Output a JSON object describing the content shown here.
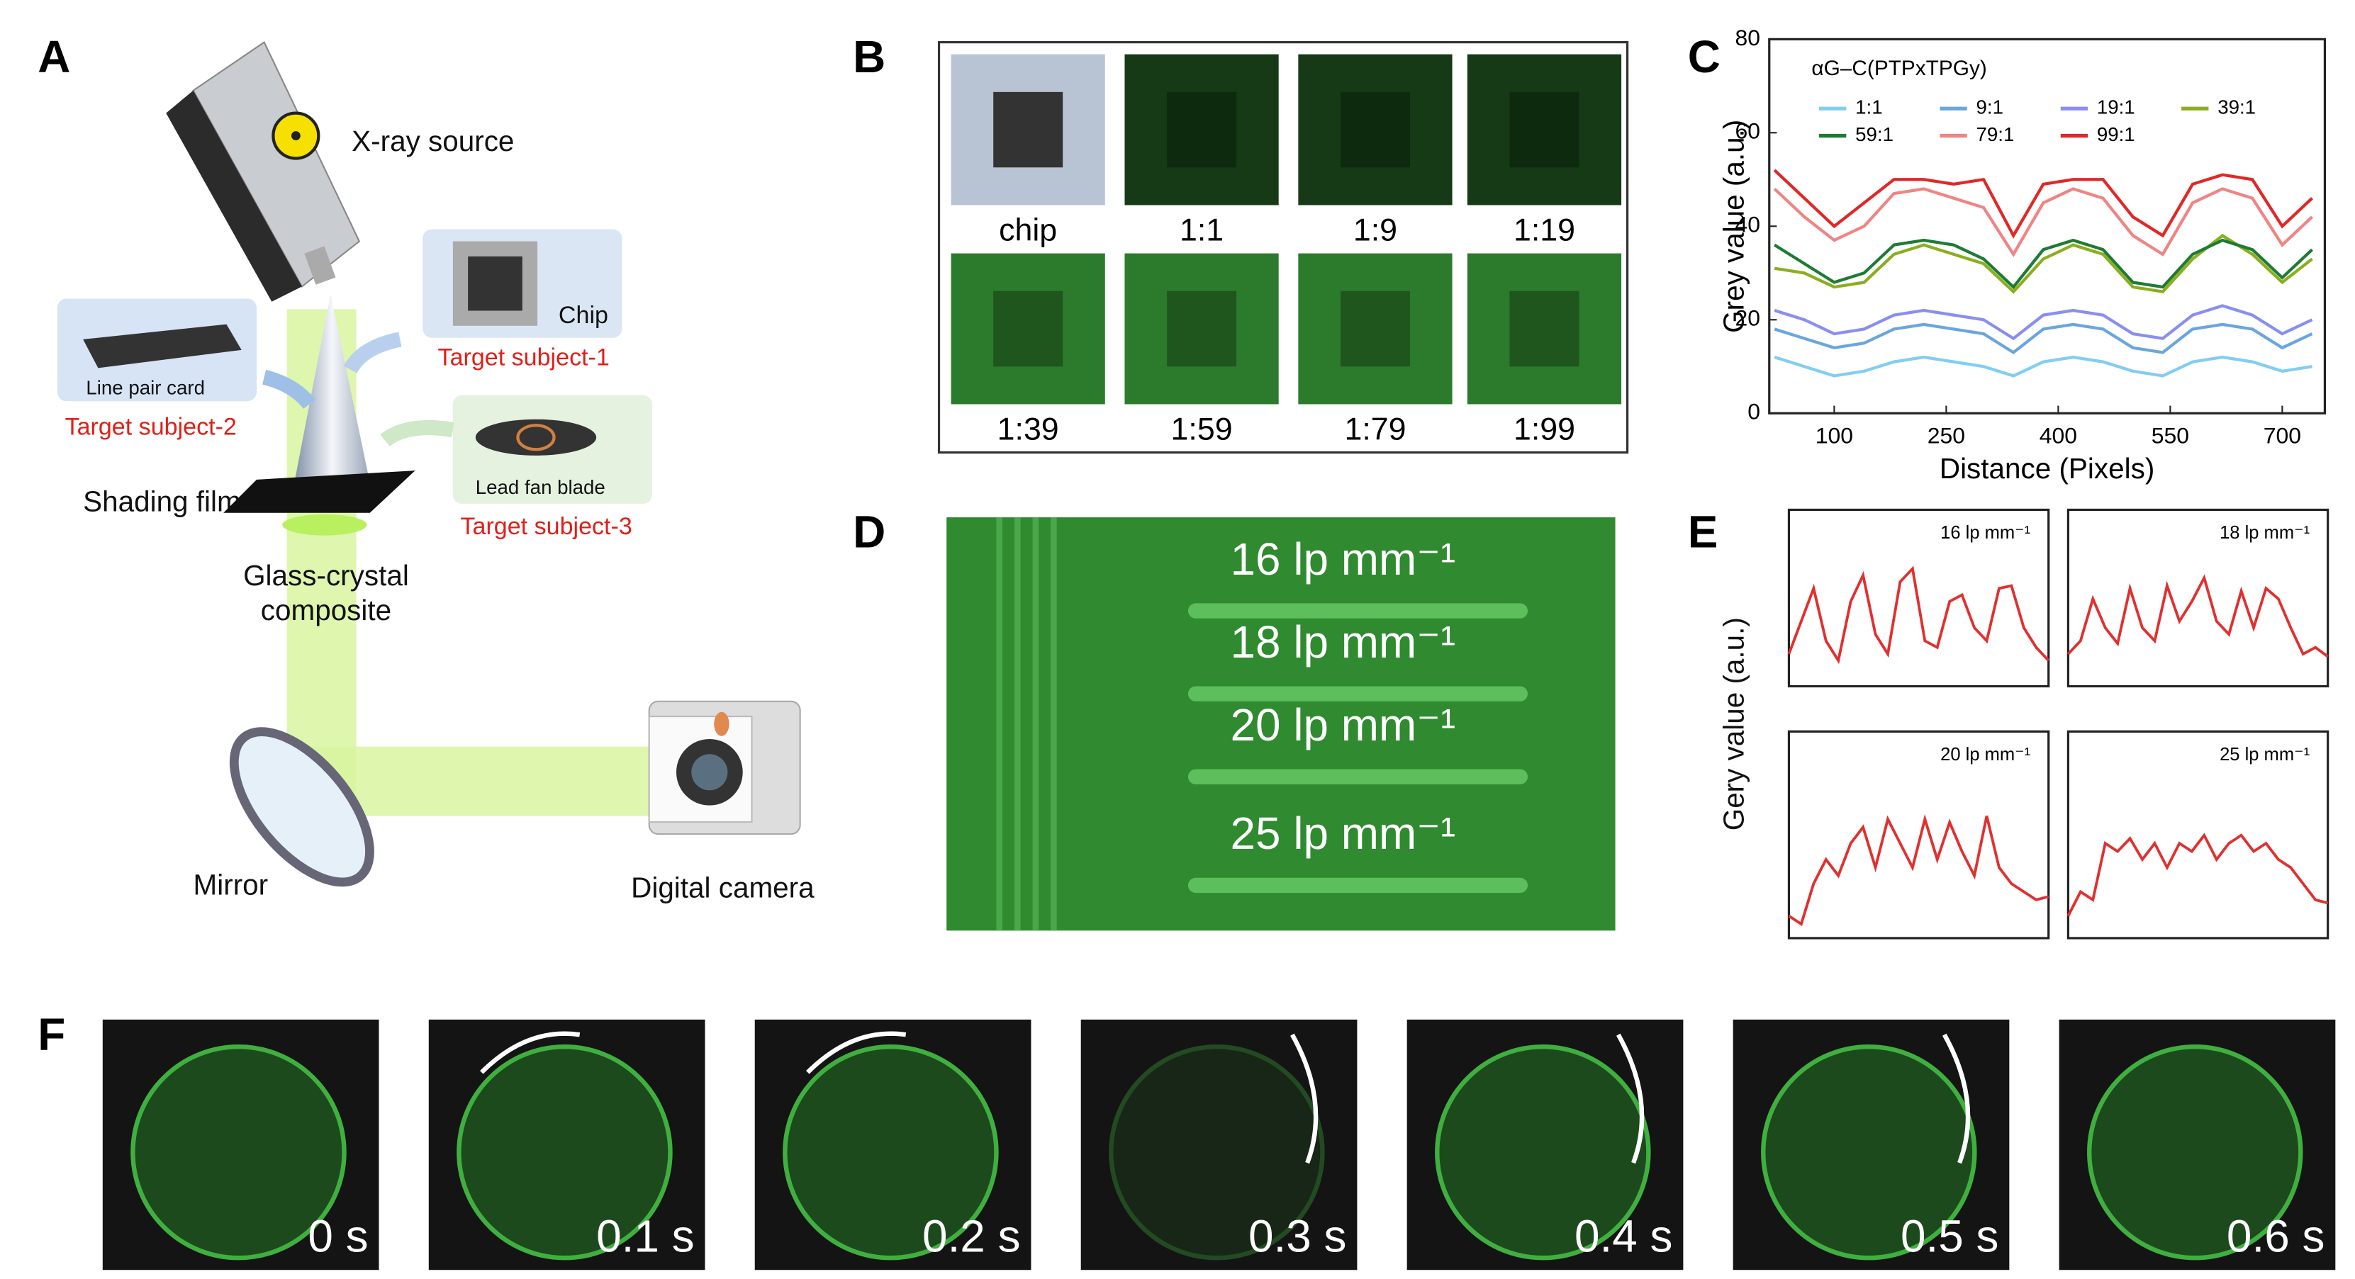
{
  "panels": {
    "A": {
      "letter": "A",
      "labels": {
        "source": "X-ray source",
        "chip": "Chip",
        "subject1": "Target subject-1",
        "card": "Line pair card",
        "subject2": "Target subject-2",
        "blade": "Lead fan blade",
        "subject3": "Target subject-3",
        "film": "Shading film",
        "composite1": "Glass-crystal",
        "composite2": "composite",
        "mirror": "Mirror",
        "camera": "Digital camera"
      }
    },
    "B": {
      "letter": "B",
      "tiles": [
        "chip",
        "1:1",
        "1:9",
        "1:19",
        "1:39",
        "1:59",
        "1:79",
        "1:99"
      ]
    },
    "C": {
      "letter": "C"
    },
    "D": {
      "letter": "D",
      "labels": [
        "16 lp mm⁻¹",
        "18 lp mm⁻¹",
        "20 lp mm⁻¹",
        "25 lp mm⁻¹"
      ]
    },
    "E": {
      "letter": "E",
      "ylabel": "Gery value (a.u.)"
    },
    "F": {
      "letter": "F",
      "times": [
        "0 s",
        "0.1 s",
        "0.2 s",
        "0.3 s",
        "0.4 s",
        "0.5 s",
        "0.6 s"
      ]
    }
  },
  "chart_data": [
    {
      "type": "line",
      "xlabel": "Distance (Pixels)",
      "ylabel": "Grey value (a.u.)",
      "legend_title": "αG–C(PTPxTPGy)",
      "x": [
        20,
        60,
        100,
        140,
        180,
        220,
        260,
        300,
        340,
        380,
        420,
        460,
        500,
        540,
        580,
        620,
        660,
        700,
        740
      ],
      "xlim": [
        13,
        757
      ],
      "ylim": [
        0,
        80
      ],
      "xticks": [
        100,
        250,
        400,
        550,
        700
      ],
      "yticks": [
        0,
        20,
        40,
        60,
        80
      ],
      "series": [
        {
          "name": "1:1",
          "color": "#82cdf2",
          "values": [
            12,
            10,
            8,
            9,
            11,
            12,
            11,
            10,
            8,
            11,
            12,
            11,
            9,
            8,
            11,
            12,
            11,
            9,
            10
          ]
        },
        {
          "name": "9:1",
          "color": "#6aa6de",
          "values": [
            18,
            16,
            14,
            15,
            18,
            19,
            18,
            17,
            13,
            18,
            19,
            18,
            14,
            13,
            18,
            19,
            18,
            14,
            17
          ]
        },
        {
          "name": "19:1",
          "color": "#8a8ef0",
          "values": [
            22,
            20,
            17,
            18,
            21,
            22,
            21,
            20,
            16,
            21,
            22,
            21,
            17,
            16,
            21,
            23,
            21,
            17,
            20
          ]
        },
        {
          "name": "39:1",
          "color": "#8aae1e",
          "values": [
            31,
            30,
            27,
            28,
            34,
            36,
            34,
            32,
            26,
            33,
            36,
            34,
            27,
            26,
            33,
            38,
            34,
            28,
            33
          ]
        },
        {
          "name": "59:1",
          "color": "#1e7b34",
          "values": [
            36,
            32,
            28,
            30,
            36,
            37,
            36,
            33,
            27,
            35,
            37,
            35,
            28,
            27,
            34,
            37,
            35,
            29,
            35
          ]
        },
        {
          "name": "79:1",
          "color": "#f08484",
          "values": [
            48,
            42,
            37,
            40,
            47,
            48,
            46,
            44,
            34,
            45,
            48,
            46,
            38,
            34,
            45,
            48,
            46,
            36,
            42
          ]
        },
        {
          "name": "99:1",
          "color": "#e02828",
          "values": [
            52,
            46,
            40,
            45,
            50,
            50,
            49,
            50,
            38,
            49,
            50,
            50,
            42,
            38,
            49,
            51,
            50,
            40,
            46
          ]
        }
      ]
    },
    {
      "type": "line",
      "title": "16 lp mm⁻¹",
      "color": "#e03030",
      "ylim": [
        0,
        100
      ],
      "values": [
        20,
        45,
        70,
        30,
        15,
        60,
        80,
        35,
        20,
        75,
        85,
        30,
        25,
        60,
        65,
        40,
        30,
        70,
        72,
        40,
        25,
        15
      ]
    },
    {
      "type": "line",
      "title": "18 lp mm⁻¹",
      "color": "#e03030",
      "ylim": [
        0,
        100
      ],
      "values": [
        20,
        30,
        62,
        40,
        28,
        70,
        40,
        30,
        72,
        45,
        60,
        78,
        45,
        35,
        68,
        40,
        70,
        62,
        40,
        20,
        25,
        18
      ]
    },
    {
      "type": "line",
      "title": "20 lp mm⁻¹",
      "color": "#e03030",
      "ylim": [
        0,
        100
      ],
      "values": [
        10,
        5,
        30,
        45,
        35,
        55,
        65,
        40,
        70,
        55,
        40,
        70,
        45,
        68,
        50,
        35,
        72,
        40,
        30,
        25,
        20,
        22
      ]
    },
    {
      "type": "line",
      "title": "25 lp mm⁻¹",
      "color": "#e03030",
      "ylim": [
        0,
        100
      ],
      "values": [
        10,
        25,
        20,
        55,
        50,
        58,
        45,
        55,
        40,
        55,
        50,
        60,
        45,
        55,
        60,
        50,
        55,
        45,
        40,
        30,
        20,
        18
      ]
    }
  ]
}
